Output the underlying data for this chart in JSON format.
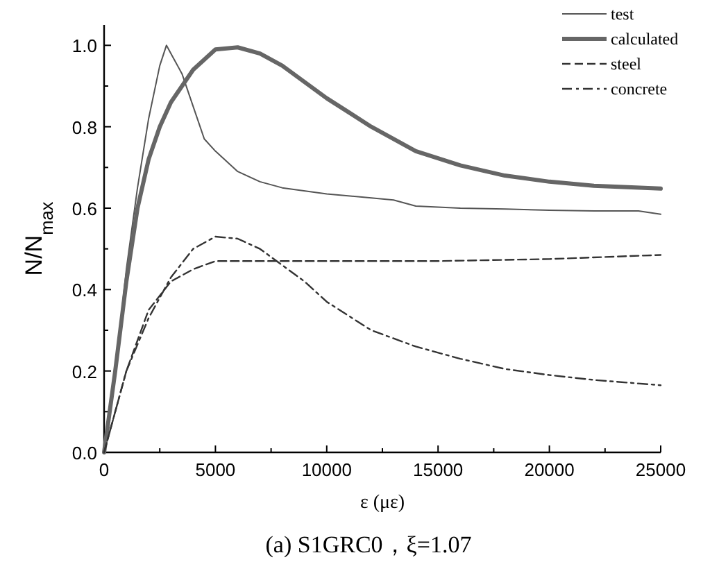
{
  "chart_data": {
    "type": "line",
    "title": "(a) S1GRC0，ξ=1.07",
    "xlabel": "ε (με)",
    "ylabel": "N/N$_{max}$",
    "xlim": [
      0,
      25000
    ],
    "ylim": [
      0,
      1.05
    ],
    "xticks": [
      0,
      {
        "value": 2500,
        "label": null
      },
      5000,
      {
        "value": 7500,
        "label": null
      },
      10000,
      {
        "value": 12500,
        "label": null
      },
      15000,
      {
        "value": 17500,
        "label": null
      },
      20000,
      {
        "value": 22500,
        "label": null
      },
      25000
    ],
    "yticks": [
      "0.0",
      {
        "value": 0.1,
        "label": null
      },
      {
        "value": 0.2,
        "label": "0.2"
      },
      {
        "value": 0.3,
        "label": null
      },
      {
        "value": 0.4,
        "label": "0.4"
      },
      {
        "value": 0.5,
        "label": null
      },
      {
        "value": 0.6,
        "label": "0.6"
      },
      {
        "value": 0.7,
        "label": null
      },
      {
        "value": 0.8,
        "label": "0.8"
      },
      {
        "value": 0.9,
        "label": null
      },
      {
        "value": 1.0,
        "label": "1.0"
      }
    ],
    "grid": false,
    "legend": "top right",
    "marker": "none",
    "series": [
      {
        "name": "test",
        "color": "#555555",
        "line_style": "solid",
        "x": [
          0,
          500,
          1000,
          1500,
          2000,
          2500,
          2800,
          3100,
          3500,
          4000,
          4500,
          5000,
          6000,
          7000,
          8000,
          10000,
          12000,
          13000,
          14000,
          16000,
          18000,
          20000,
          22000,
          24000,
          25000
        ],
        "values": [
          0,
          0.2,
          0.45,
          0.65,
          0.82,
          0.95,
          1.0,
          0.97,
          0.93,
          0.85,
          0.77,
          0.74,
          0.69,
          0.665,
          0.65,
          0.635,
          0.625,
          0.62,
          0.605,
          0.6,
          0.598,
          0.595,
          0.593,
          0.593,
          0.585
        ]
      },
      {
        "name": "calculated",
        "color": "#666666",
        "line_style": "solid",
        "x": [
          0,
          500,
          1000,
          1500,
          2000,
          2500,
          3000,
          4000,
          5000,
          6000,
          7000,
          8000,
          9000,
          10000,
          12000,
          14000,
          16000,
          18000,
          20000,
          22000,
          25000
        ],
        "values": [
          0,
          0.2,
          0.42,
          0.6,
          0.72,
          0.8,
          0.86,
          0.94,
          0.99,
          0.995,
          0.98,
          0.95,
          0.91,
          0.87,
          0.8,
          0.74,
          0.705,
          0.68,
          0.665,
          0.655,
          0.648
        ]
      },
      {
        "name": "steel",
        "color": "#333333",
        "line_style": "dashed",
        "x": [
          0,
          1000,
          2000,
          3000,
          4000,
          5000,
          10000,
          15000,
          20000,
          25000
        ],
        "values": [
          0,
          0.2,
          0.35,
          0.42,
          0.45,
          0.47,
          0.47,
          0.47,
          0.475,
          0.485
        ]
      },
      {
        "name": "concrete",
        "color": "#333333",
        "line_style": "dashdot",
        "x": [
          0,
          1000,
          2000,
          3000,
          4000,
          5000,
          6000,
          7000,
          8000,
          9000,
          10000,
          12000,
          14000,
          16000,
          18000,
          20000,
          22000,
          25000
        ],
        "values": [
          0,
          0.2,
          0.33,
          0.43,
          0.5,
          0.53,
          0.525,
          0.5,
          0.46,
          0.42,
          0.37,
          0.3,
          0.26,
          0.23,
          0.205,
          0.19,
          0.178,
          0.165
        ]
      }
    ]
  }
}
